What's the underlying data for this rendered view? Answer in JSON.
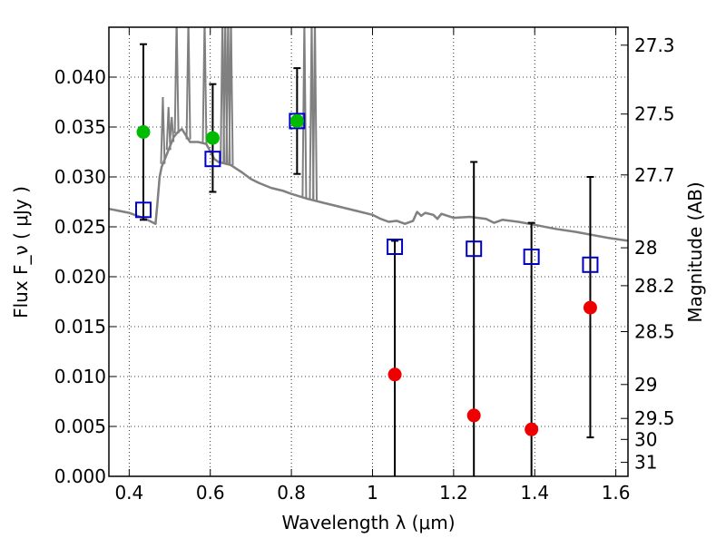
{
  "chart_data": {
    "type": "scatter",
    "xlabel": "Wavelength  λ (μm)",
    "ylabel_left": "Flux  F_ν  ( μJy )",
    "ylabel_right": "Magnitude (AB)",
    "xlim": [
      0.35,
      1.63
    ],
    "ylim": [
      0.0,
      0.045
    ],
    "xticks": [
      0.4,
      0.6,
      0.8,
      1.0,
      1.2,
      1.4,
      1.6
    ],
    "xtick_labels": [
      "0.4",
      "0.6",
      "0.8",
      "1",
      "1.2",
      "1.4",
      "1.6"
    ],
    "yticks": [
      0.0,
      0.005,
      0.01,
      0.015,
      0.02,
      0.025,
      0.03,
      0.035,
      0.04
    ],
    "ytick_labels": [
      "0.000",
      "0.005",
      "0.010",
      "0.015",
      "0.020",
      "0.025",
      "0.030",
      "0.035",
      "0.040"
    ],
    "right_ticks": [
      {
        "flux": 0.0432,
        "label": "27.3"
      },
      {
        "flux": 0.0363,
        "label": "27.5"
      },
      {
        "flux": 0.0302,
        "label": "27.7"
      },
      {
        "flux": 0.0229,
        "label": "28"
      },
      {
        "flux": 0.0191,
        "label": "28.2"
      },
      {
        "flux": 0.0145,
        "label": "28.5"
      },
      {
        "flux": 0.0092,
        "label": "29"
      },
      {
        "flux": 0.0058,
        "label": "29.5"
      },
      {
        "flux": 0.0037,
        "label": "30"
      },
      {
        "flux": 0.0014,
        "label": "31"
      }
    ],
    "grid": true,
    "colors": {
      "model_line": "#808080",
      "detected": "#00bb00",
      "nondetected": "#ee0000",
      "model_box": "#0000cc",
      "errorbar": "#000000"
    },
    "model_points": [
      {
        "x": 0.435,
        "y": 0.0267
      },
      {
        "x": 0.606,
        "y": 0.0318
      },
      {
        "x": 0.814,
        "y": 0.0356
      },
      {
        "x": 1.055,
        "y": 0.023
      },
      {
        "x": 1.25,
        "y": 0.0228
      },
      {
        "x": 1.392,
        "y": 0.022
      },
      {
        "x": 1.537,
        "y": 0.0212
      }
    ],
    "observed_points": [
      {
        "x": 0.435,
        "y": 0.0345,
        "err_low": 0.0257,
        "err_high": 0.0433,
        "status": "detected"
      },
      {
        "x": 0.606,
        "y": 0.0339,
        "err_low": 0.0285,
        "err_high": 0.0393,
        "status": "detected"
      },
      {
        "x": 0.814,
        "y": 0.0356,
        "err_low": 0.0303,
        "err_high": 0.0409,
        "status": "detected"
      },
      {
        "x": 1.055,
        "y": 0.0102,
        "err_low": 0.0,
        "err_high": 0.0236,
        "status": "nondetected"
      },
      {
        "x": 1.25,
        "y": 0.0061,
        "err_low": 0.0,
        "err_high": 0.0315,
        "status": "nondetected"
      },
      {
        "x": 1.392,
        "y": 0.0047,
        "err_low": 0.0,
        "err_high": 0.0254,
        "status": "nondetected"
      },
      {
        "x": 1.537,
        "y": 0.0169,
        "err_low": 0.0039,
        "err_high": 0.03,
        "status": "nondetected"
      }
    ],
    "model_spectrum": [
      [
        0.35,
        0.0268
      ],
      [
        0.4,
        0.0264
      ],
      [
        0.44,
        0.0258
      ],
      [
        0.46,
        0.0254
      ],
      [
        0.465,
        0.0253
      ],
      [
        0.47,
        0.0275
      ],
      [
        0.475,
        0.03
      ],
      [
        0.48,
        0.031
      ],
      [
        0.49,
        0.032
      ],
      [
        0.5,
        0.033
      ],
      [
        0.51,
        0.034
      ],
      [
        0.52,
        0.0345
      ],
      [
        0.53,
        0.0348
      ],
      [
        0.55,
        0.0335
      ],
      [
        0.57,
        0.0335
      ],
      [
        0.59,
        0.0333
      ],
      [
        0.61,
        0.0318
      ],
      [
        0.62,
        0.0315
      ],
      [
        0.65,
        0.0312
      ],
      [
        0.68,
        0.0304
      ],
      [
        0.7,
        0.0298
      ],
      [
        0.72,
        0.0294
      ],
      [
        0.75,
        0.0289
      ],
      [
        0.78,
        0.0286
      ],
      [
        0.8,
        0.0283
      ],
      [
        0.84,
        0.0278
      ],
      [
        0.88,
        0.0274
      ],
      [
        0.92,
        0.027
      ],
      [
        0.96,
        0.0266
      ],
      [
        1.0,
        0.0262
      ],
      [
        1.02,
        0.0258
      ],
      [
        1.04,
        0.0255
      ],
      [
        1.06,
        0.0256
      ],
      [
        1.08,
        0.0253
      ],
      [
        1.1,
        0.0256
      ],
      [
        1.11,
        0.0265
      ],
      [
        1.12,
        0.0261
      ],
      [
        1.13,
        0.0264
      ],
      [
        1.15,
        0.0262
      ],
      [
        1.16,
        0.0258
      ],
      [
        1.17,
        0.0263
      ],
      [
        1.2,
        0.0259
      ],
      [
        1.24,
        0.026
      ],
      [
        1.28,
        0.0258
      ],
      [
        1.3,
        0.0254
      ],
      [
        1.32,
        0.0257
      ],
      [
        1.36,
        0.0255
      ],
      [
        1.4,
        0.0252
      ],
      [
        1.45,
        0.0248
      ],
      [
        1.5,
        0.0245
      ],
      [
        1.54,
        0.0242
      ],
      [
        1.58,
        0.0239
      ],
      [
        1.63,
        0.0236
      ]
    ],
    "spectrum_spikes": [
      {
        "x": 0.483,
        "top": 0.038
      },
      {
        "x": 0.497,
        "top": 0.037
      },
      {
        "x": 0.505,
        "top": 0.036
      },
      {
        "x": 0.517,
        "top": 0.045
      },
      {
        "x": 0.546,
        "top": 0.045
      },
      {
        "x": 0.586,
        "top": 0.045
      },
      {
        "x": 0.63,
        "top": 0.045
      },
      {
        "x": 0.637,
        "top": 0.045
      },
      {
        "x": 0.644,
        "top": 0.045
      },
      {
        "x": 0.651,
        "top": 0.045
      },
      {
        "x": 0.832,
        "top": 0.045
      },
      {
        "x": 0.85,
        "top": 0.045
      },
      {
        "x": 0.858,
        "top": 0.045
      }
    ]
  }
}
